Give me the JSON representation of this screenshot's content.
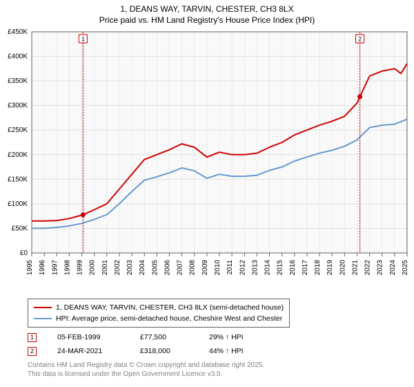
{
  "title_line1": "1, DEANS WAY, TARVIN, CHESTER, CH3 8LX",
  "title_line2": "Price paid vs. HM Land Registry's House Price Index (HPI)",
  "chart": {
    "type": "line",
    "plot_bg": "#f9f9f9",
    "outer_bg": "#ffffff",
    "border_color": "#606060",
    "grid_color": "#e0e0e0",
    "x_start": 1995,
    "x_end": 2025,
    "x_tick_step": 1,
    "y_min": 0,
    "y_max": 450000,
    "y_tick_step": 50000,
    "y_tick_labels": [
      "£0",
      "£50K",
      "£100K",
      "£150K",
      "£200K",
      "£250K",
      "£300K",
      "£350K",
      "£400K",
      "£450K"
    ],
    "y_tick_values": [
      0,
      50000,
      100000,
      150000,
      200000,
      250000,
      300000,
      350000,
      400000,
      450000
    ],
    "series": [
      {
        "name": "price-paid",
        "color": "#cc0000",
        "width": 2,
        "data": [
          [
            1995,
            65000
          ],
          [
            1996,
            65000
          ],
          [
            1997,
            66000
          ],
          [
            1998,
            70000
          ],
          [
            1999.1,
            77500
          ],
          [
            2000,
            88000
          ],
          [
            2001,
            100000
          ],
          [
            2002,
            130000
          ],
          [
            2003,
            160000
          ],
          [
            2004,
            190000
          ],
          [
            2005,
            200000
          ],
          [
            2006,
            210000
          ],
          [
            2007,
            222000
          ],
          [
            2008,
            215000
          ],
          [
            2009,
            195000
          ],
          [
            2010,
            205000
          ],
          [
            2011,
            200000
          ],
          [
            2012,
            200000
          ],
          [
            2013,
            203000
          ],
          [
            2014,
            215000
          ],
          [
            2015,
            225000
          ],
          [
            2016,
            240000
          ],
          [
            2017,
            250000
          ],
          [
            2018,
            260000
          ],
          [
            2019,
            268000
          ],
          [
            2020,
            278000
          ],
          [
            2021,
            305000
          ],
          [
            2021.23,
            318000
          ],
          [
            2022,
            360000
          ],
          [
            2023,
            370000
          ],
          [
            2024,
            375000
          ],
          [
            2024.5,
            365000
          ],
          [
            2025,
            385000
          ]
        ]
      },
      {
        "name": "hpi",
        "color": "#6699cc",
        "width": 2,
        "data": [
          [
            1995,
            50000
          ],
          [
            1996,
            50000
          ],
          [
            1997,
            52000
          ],
          [
            1998,
            55000
          ],
          [
            1999,
            60000
          ],
          [
            2000,
            68000
          ],
          [
            2001,
            78000
          ],
          [
            2002,
            100000
          ],
          [
            2003,
            125000
          ],
          [
            2004,
            148000
          ],
          [
            2005,
            155000
          ],
          [
            2006,
            163000
          ],
          [
            2007,
            173000
          ],
          [
            2008,
            167000
          ],
          [
            2009,
            152000
          ],
          [
            2010,
            160000
          ],
          [
            2011,
            156000
          ],
          [
            2012,
            156000
          ],
          [
            2013,
            158000
          ],
          [
            2014,
            168000
          ],
          [
            2015,
            175000
          ],
          [
            2016,
            187000
          ],
          [
            2017,
            195000
          ],
          [
            2018,
            203000
          ],
          [
            2019,
            209000
          ],
          [
            2020,
            217000
          ],
          [
            2021,
            230000
          ],
          [
            2022,
            255000
          ],
          [
            2023,
            260000
          ],
          [
            2024,
            262000
          ],
          [
            2025,
            272000
          ]
        ]
      }
    ],
    "markers": [
      {
        "n": "1",
        "x": 1999.1,
        "y": 77500,
        "color": "#cc0000",
        "label_y_offset": -240
      },
      {
        "n": "2",
        "x": 2021.23,
        "y": 318000,
        "color": "#cc0000",
        "label_y_offset": -240
      }
    ],
    "marker_band_color": "#f0d8d8",
    "marker_band_width": 3
  },
  "legend": {
    "items": [
      {
        "color": "#cc0000",
        "label": "1, DEANS WAY, TARVIN, CHESTER, CH3 8LX (semi-detached house)"
      },
      {
        "color": "#6699cc",
        "label": "HPI: Average price, semi-detached house, Cheshire West and Chester"
      }
    ]
  },
  "marker_rows": [
    {
      "n": "1",
      "color": "#cc0000",
      "date": "05-FEB-1999",
      "price": "£77,500",
      "hpi": "29% ↑ HPI"
    },
    {
      "n": "2",
      "color": "#cc0000",
      "date": "24-MAR-2021",
      "price": "£318,000",
      "hpi": "44% ↑ HPI"
    }
  ],
  "footer_line1": "Contains HM Land Registry data © Crown copyright and database right 2025.",
  "footer_line2": "This data is licensed under the Open Government Licence v3.0."
}
